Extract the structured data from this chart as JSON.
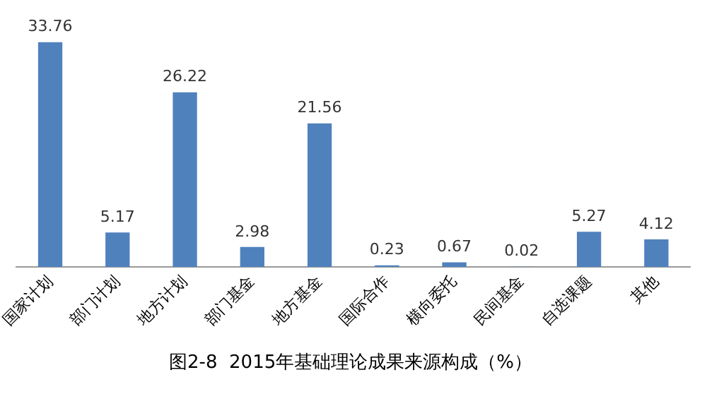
{
  "chart_data": {
    "type": "bar",
    "title": "图2-8  2015年基础理论成果来源构成（%）",
    "categories": [
      "国家计划",
      "部门计划",
      "地方计划",
      "部门基金",
      "地方基金",
      "国际合作",
      "横向委托",
      "民间基金",
      "自选课题",
      "其他"
    ],
    "values": [
      33.76,
      5.17,
      26.22,
      2.98,
      21.56,
      0.23,
      0.67,
      0.02,
      5.27,
      4.12
    ],
    "color": "#4f81bd",
    "data_labels": true,
    "grid": false,
    "legend": false
  }
}
